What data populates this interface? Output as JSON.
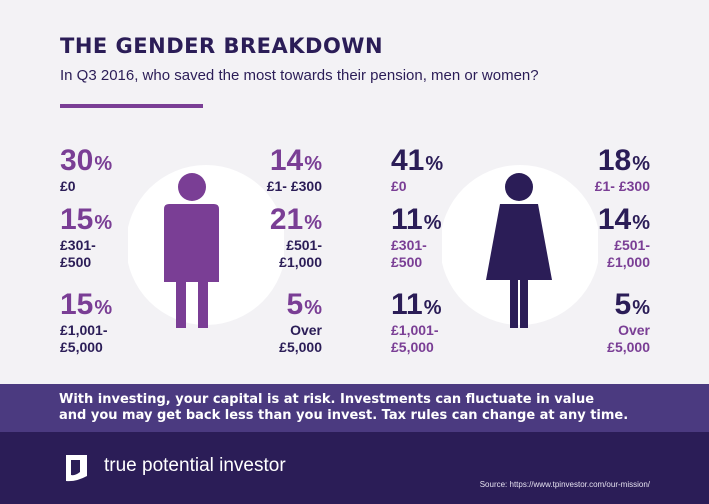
{
  "header": {
    "title": "THE GENDER BREAKDOWN",
    "subtitle": "In Q3 2016, who saved the most towards their pension, men or women?"
  },
  "colors": {
    "purple": "#7a3e95",
    "navy": "#2b1d57",
    "band": "#4b3a80",
    "circle": "#ffffff"
  },
  "icons": {
    "men": "man-figure-icon",
    "women": "woman-figure-icon",
    "logo": "tpi-logo-icon"
  },
  "chart_data": [
    {
      "type": "table",
      "group": "men",
      "categories": [
        "£0",
        "£301-£500",
        "£1,001-£5,000",
        "£1-£300",
        "£501-£1,000",
        "Over £5,000"
      ],
      "values": [
        30,
        15,
        15,
        14,
        21,
        5
      ],
      "unit": "%"
    },
    {
      "type": "table",
      "group": "women",
      "categories": [
        "£0",
        "£301-£500",
        "£1,001-£5,000",
        "£1-£300",
        "£501-£1,000",
        "Over £5,000"
      ],
      "values": [
        41,
        11,
        11,
        18,
        14,
        5
      ],
      "unit": "%"
    }
  ],
  "stats": {
    "men": [
      {
        "value": "30",
        "sym": "%",
        "label": [
          "£0"
        ]
      },
      {
        "value": "15",
        "sym": "%",
        "label": [
          "£301-",
          "£500"
        ]
      },
      {
        "value": "15",
        "sym": "%",
        "label": [
          "£1,001-",
          "£5,000"
        ]
      },
      {
        "value": "14",
        "sym": "%",
        "label": [
          "£1- £300"
        ]
      },
      {
        "value": "21",
        "sym": "%",
        "label": [
          "£501-",
          "£1,000"
        ]
      },
      {
        "value": "5",
        "sym": "%",
        "label": [
          "Over",
          "£5,000"
        ]
      }
    ],
    "women": [
      {
        "value": "41",
        "sym": "%",
        "label": [
          "£0"
        ]
      },
      {
        "value": "11",
        "sym": "%",
        "label": [
          "£301-",
          "£500"
        ]
      },
      {
        "value": "11",
        "sym": "%",
        "label": [
          "£1,001-",
          "£5,000"
        ]
      },
      {
        "value": "18",
        "sym": "%",
        "label": [
          "£1- £300"
        ]
      },
      {
        "value": "14",
        "sym": "%",
        "label": [
          "£501-",
          "£1,000"
        ]
      },
      {
        "value": "5",
        "sym": "%",
        "label": [
          "Over",
          "£5,000"
        ]
      }
    ]
  },
  "disclaimer": {
    "line1": "With investing, your capital is at risk. Investments can fluctuate in value",
    "line2": "and you may get back less than you invest. Tax rules can change at any time."
  },
  "footer": {
    "brand": "true potential investor",
    "source": "Source: https://www.tpinvestor.com/our-mission/"
  }
}
